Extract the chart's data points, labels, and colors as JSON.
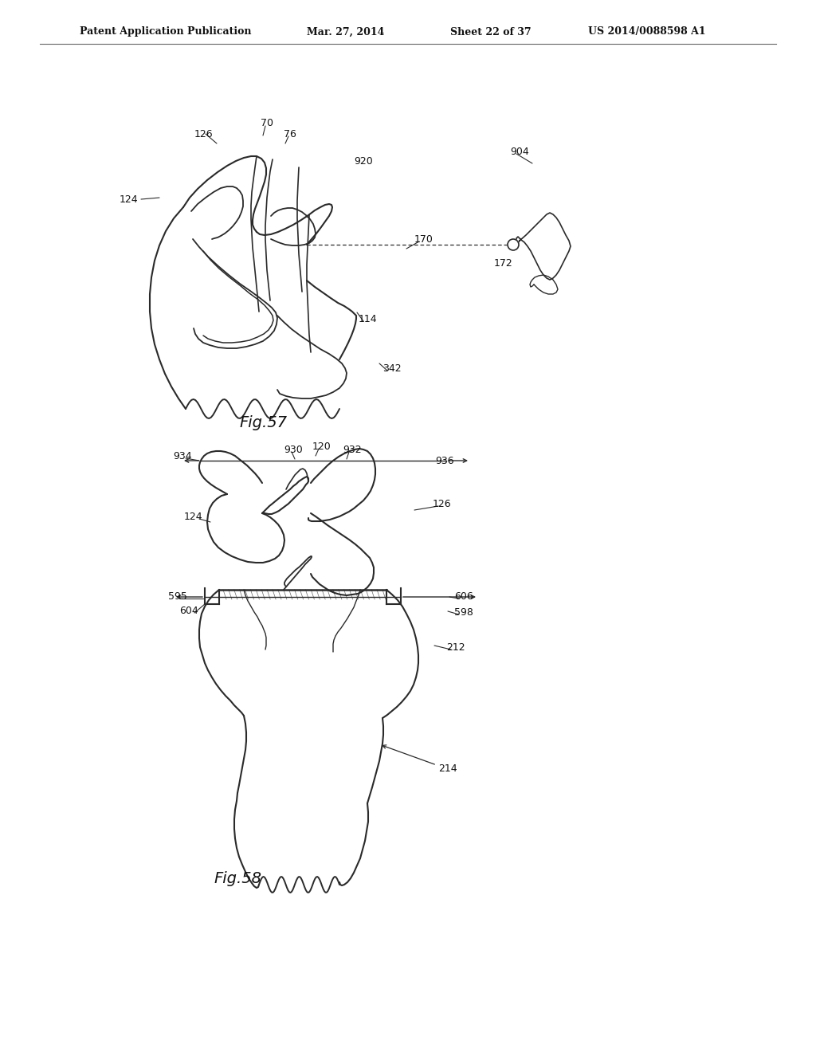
{
  "bg_color": "#ffffff",
  "line_color": "#2a2a2a",
  "header_left": "Patent Application Publication",
  "header_mid1": "Mar. 27, 2014",
  "header_mid2": "Sheet 22 of 37",
  "header_right": "US 2014/0088598 A1",
  "fig57_label": "Fig.57",
  "fig58_label": "Fig.58"
}
